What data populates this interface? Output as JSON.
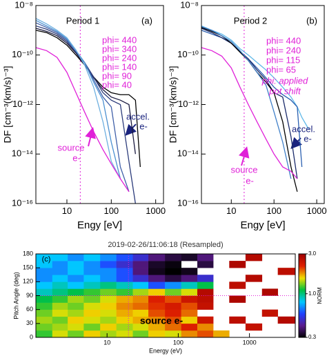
{
  "chart_data": [
    {
      "type": "line",
      "log_x": true,
      "log_y": true,
      "xlabel": "Engy [eV]",
      "ylabel": "DF [cm⁻³(km/s)⁻³]",
      "xlim": [
        2,
        1500
      ],
      "xticks": [
        10,
        100,
        1000
      ],
      "ylim": [
        1e-16,
        1e-08
      ],
      "yticks": [
        {
          "value": 1e-08,
          "label": "10⁻⁸"
        },
        {
          "value": 1e-10,
          "label": "10⁻¹⁰"
        },
        {
          "value": 1e-12,
          "label": "10⁻¹²"
        },
        {
          "value": 1e-14,
          "label": "10⁻¹⁴"
        },
        {
          "value": 1e-16,
          "label": "10⁻¹⁶"
        }
      ],
      "vline": 20,
      "x": [
        2,
        3.5,
        6,
        10,
        16,
        25,
        40,
        65,
        100,
        160,
        250,
        350,
        450,
        650
      ],
      "series": [
        {
          "color": "#000000",
          "values": [
            1e-09,
            8e-10,
            5e-10,
            2.5e-10,
            1e-10,
            4e-11,
            1.3e-11,
            5e-12,
            3e-12,
            2.5e-12,
            2.5e-12,
            1.5e-12,
            3e-15,
            null
          ]
        },
        {
          "color": "#1a1a40",
          "values": [
            1.2e-09,
            9e-10,
            6e-10,
            3e-10,
            1.2e-10,
            4e-11,
            1.2e-11,
            4e-12,
            2e-12,
            1.5e-12,
            1e-12,
            1e-14,
            null,
            null
          ]
        },
        {
          "color": "#2a3a7a",
          "values": [
            1.5e-09,
            1.1e-09,
            7e-10,
            3.5e-10,
            1.3e-10,
            5e-11,
            1.3e-11,
            3e-12,
            1.5e-12,
            1e-12,
            5e-15,
            1e-16,
            null,
            null
          ]
        },
        {
          "color": "#3f5fa8",
          "values": [
            2e-09,
            1.3e-09,
            8e-10,
            4e-10,
            1.5e-10,
            5e-11,
            1e-11,
            2e-12,
            8e-13,
            3e-15,
            3e-16,
            null,
            null,
            null
          ]
        },
        {
          "color": "#4a8fd0",
          "values": [
            2.5e-09,
            1.5e-09,
            9e-10,
            4.5e-10,
            1.5e-10,
            5e-11,
            8e-12,
            1.5e-12,
            3e-14,
            1e-15,
            null,
            null,
            null,
            null
          ]
        },
        {
          "color": "#6fb0e0",
          "values": [
            3e-09,
            1.8e-09,
            1e-09,
            5e-10,
            1.6e-10,
            4e-11,
            5e-12,
            2e-13,
            5e-15,
            1e-15,
            null,
            null,
            null,
            null
          ]
        },
        {
          "color": "#e020d8",
          "values": [
            2e-10,
            1.5e-10,
            8e-11,
            2e-11,
            3e-12,
            5e-13,
            8e-14,
            1.5e-14,
            4e-15,
            1e-15,
            3e-16,
            null,
            null,
            null
          ]
        }
      ],
      "annotations": [
        {
          "text": "Period 1",
          "color": "#000000"
        },
        {
          "text": "(a)",
          "color": "#000000"
        },
        {
          "text": "phi= 440",
          "color": "#e020d8"
        },
        {
          "text": "phi= 340",
          "color": "#e020d8"
        },
        {
          "text": "phi= 240",
          "color": "#e020d8"
        },
        {
          "text": "phi= 140",
          "color": "#e020d8"
        },
        {
          "text": "phi=  90",
          "color": "#e020d8"
        },
        {
          "text": "phi=  40",
          "color": "#e020d8"
        },
        {
          "text": "accel.",
          "color": "#1a237e"
        },
        {
          "text": "e-",
          "color": "#1a237e"
        },
        {
          "text": "source",
          "color": "#e020d8"
        },
        {
          "text": "e-",
          "color": "#e020d8"
        }
      ]
    },
    {
      "type": "line",
      "log_x": true,
      "log_y": true,
      "xlabel": "Engy [eV]",
      "ylabel": "DF [cm⁻³(km/s)⁻³]",
      "xlim": [
        2,
        1500
      ],
      "xticks": [
        10,
        100,
        1000
      ],
      "ylim": [
        1e-16,
        1e-08
      ],
      "yticks": [
        {
          "value": 1e-08,
          "label": "10⁻⁸"
        },
        {
          "value": 1e-10,
          "label": "10⁻¹⁰"
        },
        {
          "value": 1e-12,
          "label": "10⁻¹²"
        },
        {
          "value": 1e-14,
          "label": "10⁻¹⁴"
        },
        {
          "value": 1e-16,
          "label": "10⁻¹⁶"
        }
      ],
      "vline": 20,
      "x": [
        2,
        3.5,
        6,
        10,
        16,
        25,
        40,
        65,
        100,
        160,
        250,
        350,
        450,
        650
      ],
      "series": [
        {
          "color": "#5fb8e8",
          "values": [
            1.5e-09,
            1e-09,
            7e-10,
            4e-10,
            1.8e-10,
            1e-10,
            5e-11,
            2.5e-11,
            1.2e-11,
            5e-12,
            2e-12,
            8e-13,
            3e-13,
            1e-13
          ]
        },
        {
          "color": "#2a5fb0",
          "values": [
            1e-09,
            7e-10,
            5e-10,
            3e-10,
            1.4e-10,
            7e-11,
            3e-11,
            1.2e-11,
            5e-12,
            2.5e-12,
            1.5e-12,
            8e-13,
            3e-15,
            null
          ]
        },
        {
          "color": "#1a2a6a",
          "values": [
            1.2e-09,
            8e-10,
            5e-10,
            3e-10,
            1.4e-10,
            7e-11,
            2.5e-11,
            1e-11,
            3e-12,
            2e-12,
            5e-14,
            1e-15,
            null,
            null
          ]
        },
        {
          "color": "#000000",
          "values": [
            1.3e-09,
            9e-10,
            6e-10,
            3e-10,
            1.3e-10,
            6e-11,
            2e-11,
            8e-12,
            3e-12,
            2e-13,
            3e-15,
            3e-16,
            null,
            null
          ]
        },
        {
          "color": "#3f7fc8",
          "values": [
            1.4e-09,
            1e-09,
            6e-10,
            3.5e-10,
            1.5e-10,
            6e-11,
            2e-11,
            6e-12,
            5e-13,
            3e-14,
            1e-15,
            null,
            null,
            null
          ]
        },
        {
          "color": "#e020d8",
          "values": [
            2e-10,
            1.5e-10,
            9e-11,
            3e-11,
            5e-12,
            1e-12,
            2e-13,
            4e-14,
            1e-14,
            3e-15,
            2e-15,
            1e-15,
            null,
            null
          ]
        }
      ],
      "annotations": [
        {
          "text": "Period 2",
          "color": "#000000"
        },
        {
          "text": "(b)",
          "color": "#000000"
        },
        {
          "text": "phi= 440",
          "color": "#e020d8"
        },
        {
          "text": "phi= 240",
          "color": "#e020d8"
        },
        {
          "text": "phi= 115",
          "color": "#e020d8"
        },
        {
          "text": "phi=  65",
          "color": "#e020d8"
        },
        {
          "text": "phi: applied",
          "color": "#e020d8"
        },
        {
          "text": "pot shift",
          "color": "#e020d8"
        },
        {
          "text": "accel.",
          "color": "#1a237e"
        },
        {
          "text": "e-",
          "color": "#1a237e"
        },
        {
          "text": "source",
          "color": "#e020d8"
        },
        {
          "text": "e-",
          "color": "#e020d8"
        }
      ]
    },
    {
      "type": "heatmap",
      "title": "2019-02-26/11:06:18 (Resampled)",
      "xlabel": "Energy (eV)",
      "ylabel": "Pitch Angle (deg)",
      "log_x": true,
      "xlim": [
        1,
        4400
      ],
      "xticks": [
        10,
        100,
        1000
      ],
      "ylim": [
        0,
        180
      ],
      "yticks": [
        0,
        30,
        60,
        90,
        120,
        150,
        180
      ],
      "vline": 20,
      "hline": 90,
      "x_bins": [
        1,
        1.7,
        2.8,
        4.7,
        8,
        13.5,
        23,
        38,
        65,
        110,
        185,
        310,
        520,
        880,
        1500,
        2500,
        4400
      ],
      "y_bins": [
        0,
        15,
        30,
        45,
        60,
        75,
        90,
        105,
        120,
        135,
        150,
        165,
        180
      ],
      "values": [
        [
          1.2,
          1.5,
          1.3,
          1.6,
          1.4,
          1.5,
          1.3,
          1.6,
          1.5,
          1.8,
          2.0,
          1.7,
          null,
          null,
          null,
          null
        ],
        [
          1.3,
          1.4,
          1.5,
          1.3,
          1.6,
          1.4,
          1.5,
          1.7,
          1.9,
          2.2,
          1.8,
          null,
          null,
          2.5,
          null,
          null
        ],
        [
          1.4,
          1.3,
          1.6,
          1.5,
          1.4,
          1.6,
          1.7,
          1.8,
          2.0,
          1.6,
          2.4,
          null,
          2.6,
          null,
          null,
          2.7
        ],
        [
          1.3,
          1.5,
          1.4,
          1.6,
          1.5,
          1.7,
          1.6,
          2.0,
          2.2,
          1.9,
          null,
          null,
          null,
          null,
          2.5,
          null
        ],
        [
          1.2,
          1.4,
          1.3,
          1.5,
          1.6,
          1.8,
          1.9,
          2.1,
          2.3,
          2.0,
          2.5,
          null,
          null,
          null,
          null,
          null
        ],
        [
          1.1,
          1.2,
          1.4,
          1.3,
          1.5,
          1.7,
          1.8,
          2.2,
          2.0,
          2.4,
          2.6,
          null,
          2.8,
          null,
          null,
          null
        ],
        [
          0.9,
          1.0,
          1.1,
          1.2,
          1.3,
          1.2,
          1.4,
          1.6,
          1.3,
          1.5,
          2.7,
          null,
          null,
          null,
          2.8,
          null
        ],
        [
          0.8,
          0.9,
          0.8,
          0.9,
          1.0,
          0.9,
          0.8,
          0.6,
          0.7,
          0.9,
          1.1,
          null,
          2.6,
          null,
          null,
          null
        ],
        [
          0.7,
          0.8,
          0.7,
          0.8,
          0.7,
          0.6,
          0.5,
          0.4,
          0.35,
          0.4,
          0.5,
          null,
          null,
          2.7,
          null,
          null
        ],
        [
          0.7,
          0.7,
          0.8,
          0.7,
          0.7,
          0.6,
          0.4,
          0.32,
          0.3,
          0.32,
          null,
          null,
          null,
          null,
          null,
          2.6
        ],
        [
          0.8,
          0.7,
          0.8,
          0.7,
          0.6,
          0.5,
          0.4,
          0.33,
          0.31,
          null,
          0.35,
          null,
          2.8,
          null,
          null,
          null
        ],
        [
          0.8,
          0.8,
          0.7,
          0.8,
          0.7,
          0.6,
          0.5,
          0.4,
          0.35,
          0.33,
          0.4,
          null,
          null,
          2.7,
          null,
          null
        ]
      ],
      "colormap": [
        "#000000",
        "#5a1a8c",
        "#2040ff",
        "#00c8ff",
        "#00c040",
        "#f0e000",
        "#e02000",
        "#a00000"
      ],
      "colorbar": {
        "label": "NORM",
        "lim": [
          0.3,
          3
        ],
        "ticks": [
          {
            "value": 3,
            "label": "3.0"
          },
          {
            "value": 1,
            "label": "1.0"
          },
          0.3
        ]
      },
      "annotations": [
        {
          "text": "(c)",
          "color": "#000000"
        },
        {
          "text": "source e-",
          "color": "#000000"
        }
      ]
    }
  ]
}
